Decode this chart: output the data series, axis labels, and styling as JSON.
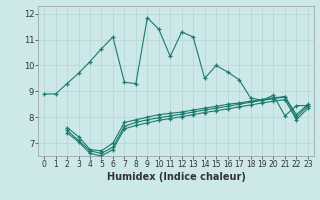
{
  "xlabel": "Humidex (Indice chaleur)",
  "bg_color": "#cce8e8",
  "line_color": "#1a7a6e",
  "grid_color": "#b8d8d8",
  "xlim": [
    -0.5,
    23.5
  ],
  "ylim": [
    6.5,
    12.3
  ],
  "xticks": [
    0,
    1,
    2,
    3,
    4,
    5,
    6,
    7,
    8,
    9,
    10,
    11,
    12,
    13,
    14,
    15,
    16,
    17,
    18,
    19,
    20,
    21,
    22,
    23
  ],
  "yticks": [
    7,
    8,
    9,
    10,
    11,
    12
  ],
  "line1_x": [
    0,
    1,
    2,
    3,
    4,
    5,
    6,
    7,
    8,
    9,
    10,
    11,
    12,
    13,
    14,
    15,
    16,
    17,
    18,
    19,
    20,
    21,
    22,
    23
  ],
  "line1_y": [
    8.9,
    8.9,
    9.3,
    9.7,
    10.15,
    10.65,
    11.1,
    9.35,
    9.3,
    11.85,
    11.4,
    10.35,
    11.3,
    11.1,
    9.5,
    10.0,
    9.75,
    9.45,
    8.75,
    8.65,
    8.85,
    8.05,
    8.45,
    8.45
  ],
  "line2_x": [
    2,
    3,
    4,
    5,
    6,
    7,
    8,
    9,
    10,
    11,
    12,
    13,
    14,
    15,
    16,
    17,
    18,
    19,
    20,
    21,
    22,
    23
  ],
  "line2_y": [
    7.6,
    7.25,
    6.75,
    6.7,
    7.0,
    7.8,
    7.9,
    8.0,
    8.1,
    8.15,
    8.2,
    8.28,
    8.35,
    8.42,
    8.5,
    8.55,
    8.62,
    8.68,
    8.75,
    8.8,
    8.1,
    8.5
  ],
  "line3_x": [
    2,
    3,
    4,
    5,
    6,
    7,
    8,
    9,
    10,
    11,
    12,
    13,
    14,
    15,
    16,
    17,
    18,
    19,
    20,
    21,
    22,
    23
  ],
  "line3_y": [
    7.5,
    7.1,
    6.7,
    6.6,
    6.85,
    7.65,
    7.8,
    7.9,
    7.98,
    8.05,
    8.12,
    8.2,
    8.28,
    8.35,
    8.42,
    8.5,
    8.58,
    8.65,
    8.72,
    8.78,
    8.0,
    8.45
  ],
  "line4_x": [
    2,
    3,
    4,
    5,
    6,
    7,
    8,
    9,
    10,
    11,
    12,
    13,
    14,
    15,
    16,
    17,
    18,
    19,
    20,
    21,
    22,
    23
  ],
  "line4_y": [
    7.4,
    7.05,
    6.6,
    6.5,
    6.75,
    7.55,
    7.68,
    7.78,
    7.88,
    7.95,
    8.02,
    8.1,
    8.18,
    8.25,
    8.32,
    8.4,
    8.47,
    8.55,
    8.62,
    8.68,
    7.9,
    8.35
  ]
}
